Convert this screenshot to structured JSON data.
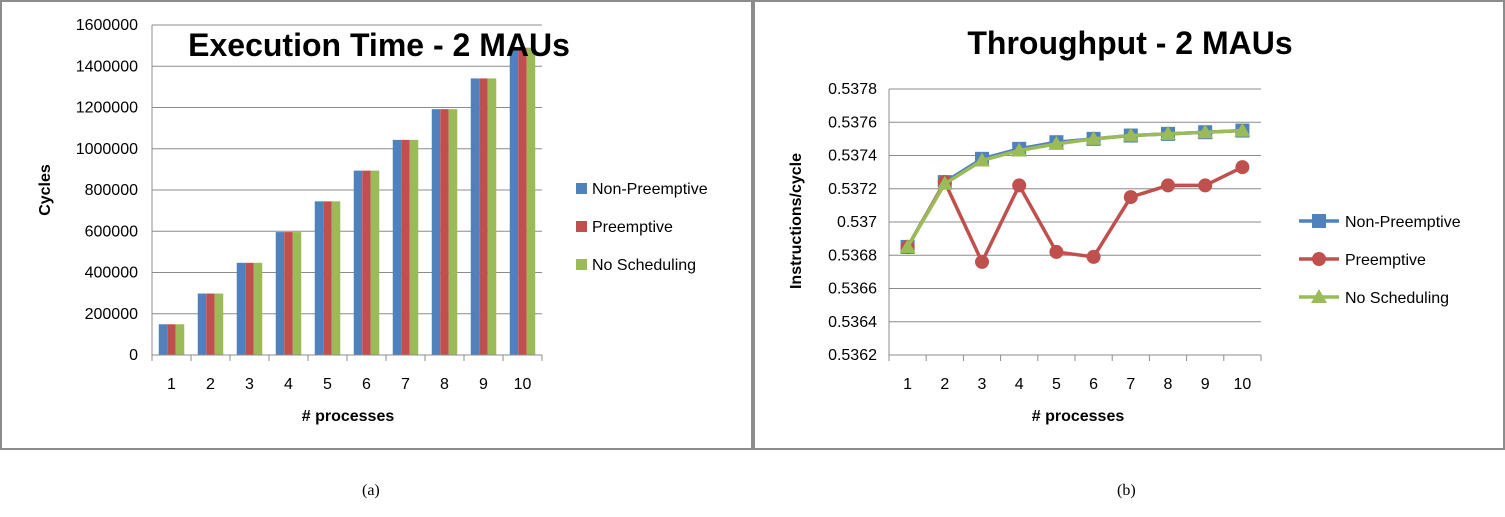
{
  "chart_data": [
    {
      "type": "bar",
      "title": "Execution Time - 2 MAUs",
      "xlabel": "# processes",
      "ylabel": "Cycles",
      "categories": [
        "1",
        "2",
        "3",
        "4",
        "5",
        "6",
        "7",
        "8",
        "9",
        "10"
      ],
      "ylim": [
        0,
        1600000
      ],
      "yticks": [
        "0",
        "200000",
        "400000",
        "600000",
        "800000",
        "1000000",
        "1200000",
        "1400000",
        "1600000"
      ],
      "grid": true,
      "legend_position": "right",
      "series": [
        {
          "name": "Non-Preemptive",
          "color": "#4f81bd",
          "values": [
            149000,
            298000,
            447000,
            596000,
            745000,
            894000,
            1043000,
            1192000,
            1341000,
            1490000
          ]
        },
        {
          "name": "Preemptive",
          "color": "#c0504d",
          "values": [
            149000,
            298000,
            447000,
            596000,
            745000,
            894000,
            1043000,
            1192000,
            1341000,
            1490000
          ]
        },
        {
          "name": "No Scheduling",
          "color": "#9bbb59",
          "values": [
            149000,
            298000,
            447000,
            596000,
            745000,
            894000,
            1043000,
            1192000,
            1341000,
            1490000
          ]
        }
      ]
    },
    {
      "type": "line",
      "title": "Throughput - 2 MAUs",
      "xlabel": "# processes",
      "ylabel": "Instructions/cycle",
      "categories": [
        "1",
        "2",
        "3",
        "4",
        "5",
        "6",
        "7",
        "8",
        "9",
        "10"
      ],
      "ylim": [
        0.5362,
        0.5378
      ],
      "yticks": [
        "0.5362",
        "0.5364",
        "0.5366",
        "0.5368",
        "0.537",
        "0.5372",
        "0.5374",
        "0.5376",
        "0.5378"
      ],
      "grid": true,
      "legend_position": "right",
      "series": [
        {
          "name": "Non-Preemptive",
          "color": "#4f81bd",
          "marker": "square",
          "values": [
            0.53685,
            0.53724,
            0.53738,
            0.53744,
            0.53748,
            0.5375,
            0.53752,
            0.53753,
            0.53754,
            0.53755
          ]
        },
        {
          "name": "Preemptive",
          "color": "#c0504d",
          "marker": "circle",
          "values": [
            0.53685,
            0.53724,
            0.53676,
            0.53722,
            0.53682,
            0.53679,
            0.53715,
            0.53722,
            0.53722,
            0.53733
          ]
        },
        {
          "name": "No Scheduling",
          "color": "#9bbb59",
          "marker": "triangle",
          "values": [
            0.53685,
            0.53723,
            0.53737,
            0.53743,
            0.53747,
            0.5375,
            0.53752,
            0.53753,
            0.53754,
            0.53755
          ]
        }
      ]
    }
  ],
  "captions": {
    "a": "(a)",
    "b": "(b)"
  }
}
